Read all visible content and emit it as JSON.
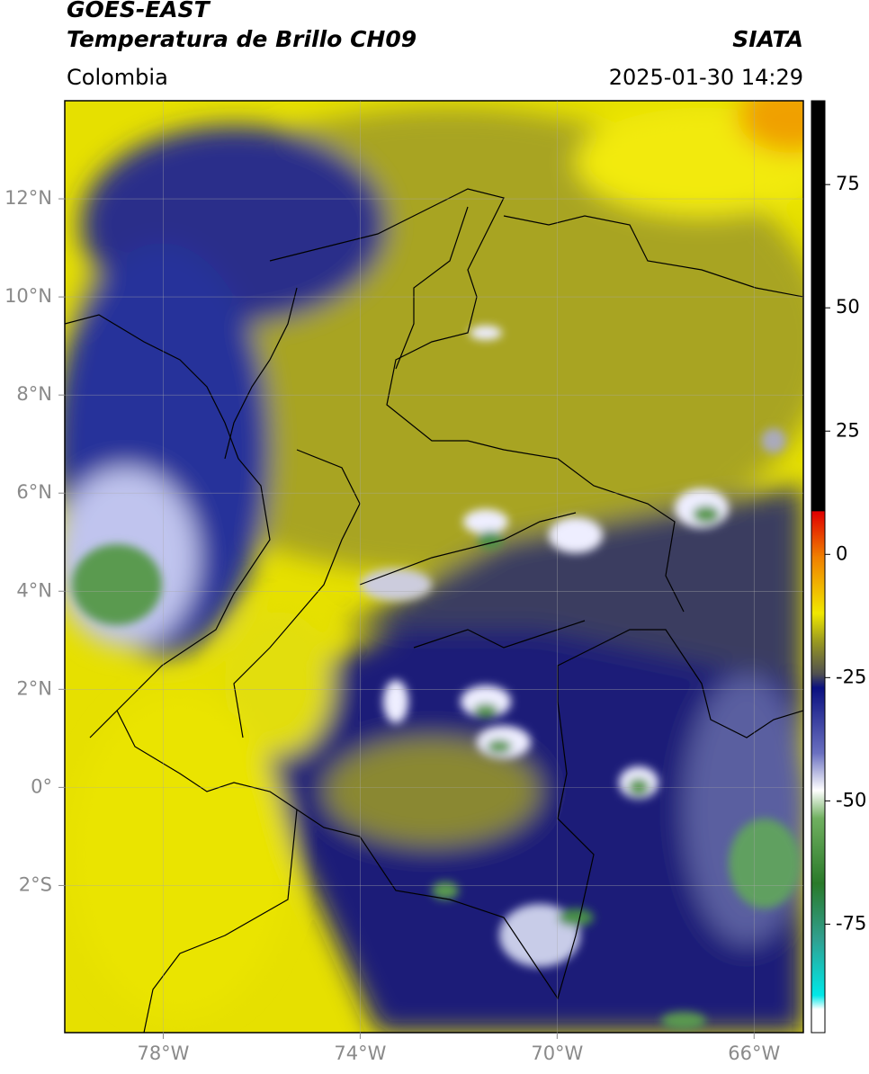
{
  "header": {
    "title": "GOES-EAST",
    "subtitle": "Temperatura de Brillo CH09",
    "source": "SIATA",
    "region": "Colombia",
    "datetime": "2025-01-30 14:29"
  },
  "map": {
    "xlim": [
      -80,
      -65
    ],
    "ylim": [
      -5,
      14
    ],
    "grid": true,
    "xticks": [
      {
        "value": -78,
        "label": "78°W"
      },
      {
        "value": -74,
        "label": "74°W"
      },
      {
        "value": -70,
        "label": "70°W"
      },
      {
        "value": -66,
        "label": "66°W"
      }
    ],
    "yticks": [
      {
        "value": 12,
        "label": "12°N"
      },
      {
        "value": 10,
        "label": "10°N"
      },
      {
        "value": 8,
        "label": "8°N"
      },
      {
        "value": 6,
        "label": "6°N"
      },
      {
        "value": 4,
        "label": "4°N"
      },
      {
        "value": 2,
        "label": "2°N"
      },
      {
        "value": 0,
        "label": "0°"
      },
      {
        "value": -2,
        "label": "2°S"
      }
    ]
  },
  "colorbar": {
    "lim": [
      -97,
      92
    ],
    "ticks": [
      75,
      50,
      25,
      0,
      -25,
      -50,
      -75
    ]
  }
}
